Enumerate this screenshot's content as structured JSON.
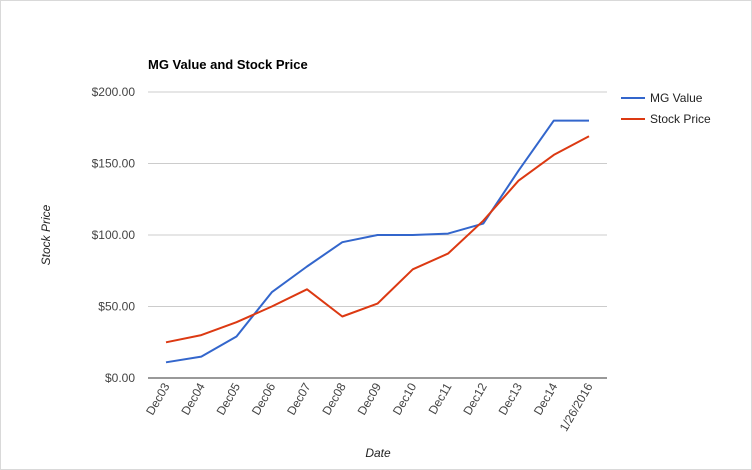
{
  "chart_data": {
    "type": "line",
    "title": "MG Value and Stock Price",
    "xlabel": "Date",
    "ylabel": "Stock Price",
    "categories": [
      "Dec03",
      "Dec04",
      "Dec05",
      "Dec06",
      "Dec07",
      "Dec08",
      "Dec09",
      "Dec10",
      "Dec11",
      "Dec12",
      "Dec13",
      "Dec14",
      "1/26/2016"
    ],
    "ylim": [
      0,
      200
    ],
    "yticks": [
      "$0.00",
      "$50.00",
      "$100.00",
      "$150.00",
      "$200.00"
    ],
    "series": [
      {
        "name": "MG Value",
        "color": "#3366cc",
        "values": [
          11,
          15,
          29,
          60,
          78,
          95,
          100,
          100,
          101,
          108,
          145,
          180,
          180
        ]
      },
      {
        "name": "Stock Price",
        "color": "#dc3912",
        "values": [
          25,
          30,
          39,
          50,
          62,
          43,
          52,
          76,
          87,
          110,
          138,
          156,
          169
        ]
      }
    ],
    "legend": "right",
    "grid": true
  }
}
